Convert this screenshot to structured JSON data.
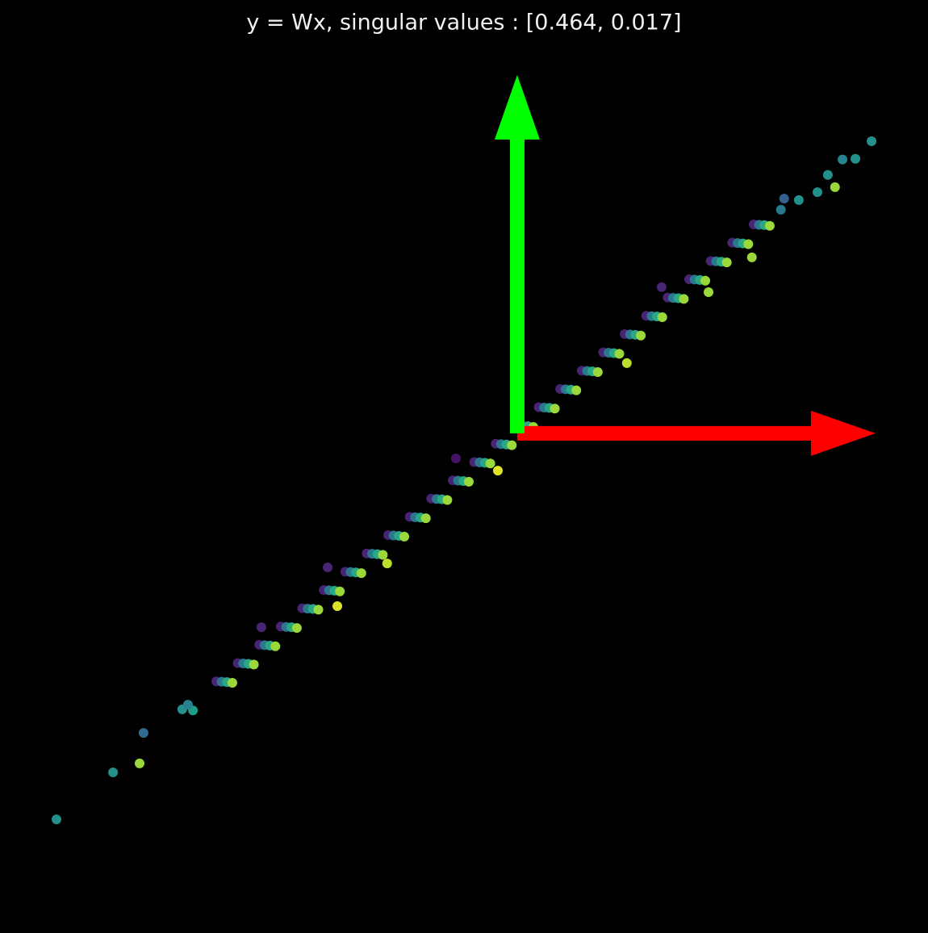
{
  "chart_data": {
    "type": "scatter",
    "title": "y = Wx, singular values : [0.464, 0.017]",
    "xlim": [
      -1.376,
      1.079
    ],
    "ylim": [
      -1.313,
      1.074
    ],
    "colormap": "viridis",
    "vectors": [
      {
        "dx": 1,
        "dy": 0,
        "color": "#ff0000"
      },
      {
        "dx": 0,
        "dy": 1,
        "color": "#00ff00"
      }
    ],
    "x": [
      -1.286,
      -1.128,
      -1.054,
      -1.043,
      -0.935,
      -0.905,
      -0.919,
      0.989,
      0.944,
      0.908,
      0.887,
      0.838,
      0.867,
      0.745,
      0.786,
      0.736,
      0.655,
      0.534,
      0.306,
      0.403,
      -0.054,
      -0.502,
      -0.363,
      -0.529,
      -0.714,
      -0.171,
      -0.84,
      -0.825,
      -0.81,
      -0.795,
      -0.78,
      -0.765,
      -0.75,
      -0.735,
      -0.72,
      -0.705,
      -0.69,
      -0.675,
      -0.66,
      -0.645,
      -0.63,
      -0.615,
      -0.6,
      -0.585,
      -0.57,
      -0.555,
      -0.54,
      -0.525,
      -0.51,
      -0.495,
      -0.48,
      -0.465,
      -0.45,
      -0.435,
      -0.42,
      -0.405,
      -0.39,
      -0.375,
      -0.36,
      -0.345,
      -0.33,
      -0.315,
      -0.3,
      -0.285,
      -0.27,
      -0.255,
      -0.24,
      -0.225,
      -0.21,
      -0.195,
      -0.18,
      -0.165,
      -0.15,
      -0.135,
      -0.12,
      -0.105,
      -0.09,
      -0.075,
      -0.06,
      -0.045,
      -0.03,
      -0.015,
      0,
      0.015,
      0.03,
      0.045,
      0.06,
      0.075,
      0.09,
      0.105,
      0.12,
      0.135,
      0.15,
      0.165,
      0.18,
      0.195,
      0.21,
      0.225,
      0.24,
      0.255,
      0.27,
      0.285,
      0.3,
      0.315,
      0.33,
      0.345,
      0.36,
      0.375,
      0.39,
      0.405,
      0.42,
      0.435,
      0.45,
      0.465,
      0.48,
      0.495,
      0.51,
      0.525,
      0.54,
      0.555,
      0.57,
      0.585,
      0.6,
      0.615,
      0.63,
      0.645,
      0.66,
      0.675,
      0.69,
      0.705
    ],
    "y": [
      -1.077,
      -0.946,
      -0.921,
      -0.836,
      -0.77,
      -0.773,
      -0.757,
      0.815,
      0.766,
      0.764,
      0.687,
      0.673,
      0.721,
      0.655,
      0.651,
      0.624,
      0.491,
      0.394,
      0.196,
      0.408,
      -0.104,
      -0.482,
      -0.363,
      -0.374,
      -0.541,
      -0.07,
      -0.692,
      -0.693,
      -0.694,
      -0.696,
      -0.641,
      -0.642,
      -0.643,
      -0.645,
      -0.59,
      -0.591,
      -0.592,
      -0.594,
      -0.539,
      -0.54,
      -0.541,
      -0.543,
      -0.488,
      -0.489,
      -0.49,
      -0.492,
      -0.437,
      -0.438,
      -0.439,
      -0.441,
      -0.386,
      -0.387,
      -0.388,
      -0.39,
      -0.335,
      -0.336,
      -0.337,
      -0.339,
      -0.284,
      -0.285,
      -0.286,
      -0.288,
      -0.233,
      -0.234,
      -0.235,
      -0.237,
      -0.182,
      -0.183,
      -0.184,
      -0.186,
      -0.131,
      -0.132,
      -0.133,
      -0.135,
      -0.08,
      -0.081,
      -0.082,
      -0.084,
      -0.029,
      -0.03,
      -0.031,
      -0.033,
      0.022,
      0.021,
      0.02,
      0.018,
      0.073,
      0.072,
      0.071,
      0.069,
      0.124,
      0.123,
      0.122,
      0.12,
      0.175,
      0.174,
      0.173,
      0.171,
      0.226,
      0.225,
      0.224,
      0.222,
      0.277,
      0.276,
      0.275,
      0.273,
      0.328,
      0.327,
      0.326,
      0.324,
      0.379,
      0.378,
      0.377,
      0.375,
      0.43,
      0.429,
      0.428,
      0.426,
      0.481,
      0.48,
      0.479,
      0.477,
      0.532,
      0.531,
      0.53,
      0.528,
      0.583,
      0.582,
      0.581,
      0.579
    ],
    "c": [
      0.5,
      0.5,
      0.85,
      0.35,
      0.5,
      0.55,
      0.45,
      0.5,
      0.5,
      0.45,
      0.85,
      0.5,
      0.5,
      0.3,
      0.5,
      0.4,
      0.85,
      0.85,
      0.9,
      0.1,
      0.95,
      0.95,
      0.9,
      0.1,
      0.1,
      0.05,
      0.1,
      0.4,
      0.6,
      0.85,
      0.1,
      0.4,
      0.6,
      0.85,
      0.1,
      0.4,
      0.6,
      0.85,
      0.1,
      0.4,
      0.6,
      0.85,
      0.1,
      0.4,
      0.6,
      0.85,
      0.1,
      0.4,
      0.6,
      0.85,
      0.1,
      0.4,
      0.6,
      0.85,
      0.1,
      0.4,
      0.6,
      0.85,
      0.1,
      0.4,
      0.6,
      0.85,
      0.1,
      0.4,
      0.6,
      0.85,
      0.1,
      0.4,
      0.6,
      0.85,
      0.1,
      0.4,
      0.6,
      0.85,
      0.1,
      0.4,
      0.6,
      0.85,
      0.1,
      0.4,
      0.6,
      0.85,
      0.1,
      0.4,
      0.6,
      0.85,
      0.1,
      0.4,
      0.6,
      0.85,
      0.1,
      0.4,
      0.6,
      0.85,
      0.1,
      0.4,
      0.6,
      0.85,
      0.1,
      0.4,
      0.6,
      0.85,
      0.1,
      0.4,
      0.6,
      0.85,
      0.1,
      0.4,
      0.6,
      0.85,
      0.1,
      0.4,
      0.6,
      0.85,
      0.1,
      0.4,
      0.6,
      0.85,
      0.1,
      0.4,
      0.6,
      0.85,
      0.1,
      0.4,
      0.6,
      0.85,
      0.1,
      0.4,
      0.6,
      0.85
    ]
  }
}
